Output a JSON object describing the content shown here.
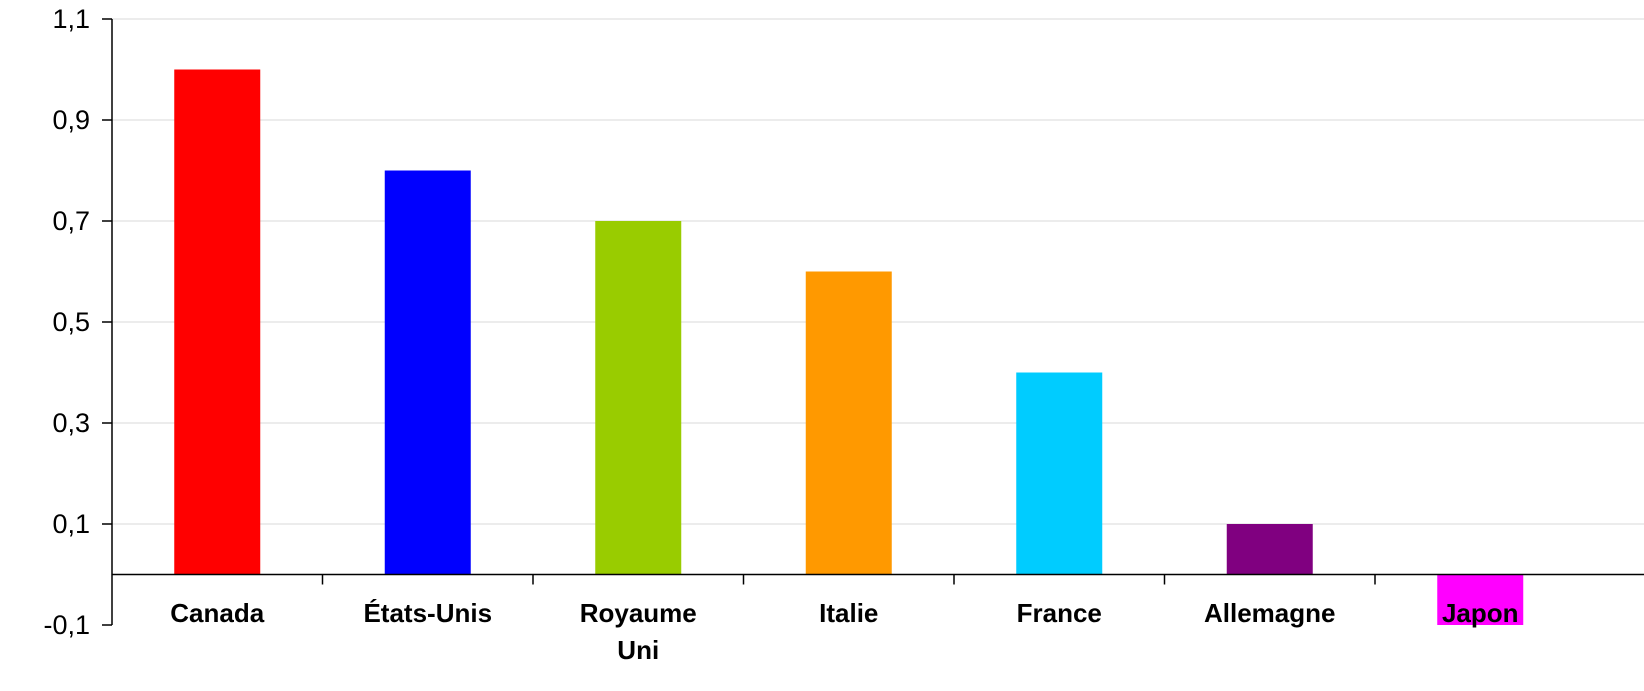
{
  "chart_data": {
    "type": "bar",
    "title": "",
    "xlabel": "",
    "ylabel": "",
    "categories": [
      "Canada",
      "États-Unis",
      "Royaume Uni",
      "Italie",
      "France",
      "Allemagne",
      "Japon"
    ],
    "values": [
      1.0,
      0.8,
      0.7,
      0.6,
      0.4,
      0.1,
      -0.1
    ],
    "colors": [
      "#ff0000",
      "#0000ff",
      "#99cc00",
      "#ff9900",
      "#00ccff",
      "#800080",
      "#ff00ff"
    ],
    "ylim": [
      -0.1,
      1.1
    ],
    "yticks": [
      -0.1,
      0.1,
      0.3,
      0.5,
      0.7,
      0.9,
      1.1
    ],
    "ytick_labels": [
      "-0,1",
      "0,1",
      "0,3",
      "0,5",
      "0,7",
      "0,9",
      "1,1"
    ],
    "grid": true,
    "legend": "none"
  }
}
